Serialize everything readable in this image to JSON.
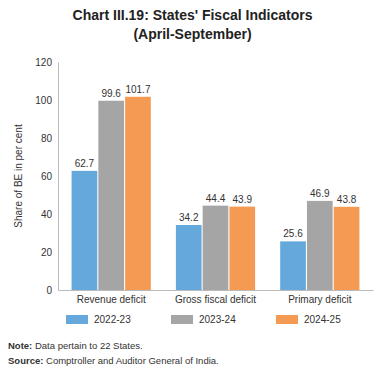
{
  "chart_data": {
    "type": "bar",
    "title": "Chart III.19: States' Fiscal Indicators",
    "subtitle": "(April-September)",
    "y_label": "Share of BE in per cent",
    "categories": [
      "Revenue deficit",
      "Gross fiscal deficit",
      "Primary deficit"
    ],
    "series": [
      {
        "name": "2022-23",
        "color": "#64a8dc",
        "values": [
          62.7,
          34.2,
          25.6
        ]
      },
      {
        "name": "2023-24",
        "color": "#a5a5a5",
        "values": [
          99.6,
          44.4,
          46.9
        ]
      },
      {
        "name": "2024-25",
        "color": "#f59a52",
        "values": [
          101.7,
          43.9,
          43.8
        ]
      }
    ],
    "ylim": [
      0,
      120
    ],
    "yticks": [
      0,
      20,
      40,
      60,
      80,
      100,
      120
    ],
    "grid": false,
    "legend": "bottom",
    "data_labels": true,
    "annotations": [
      "Note: Data pertain to 22 States.",
      "Source: Comptroller and Auditor General of India."
    ]
  }
}
